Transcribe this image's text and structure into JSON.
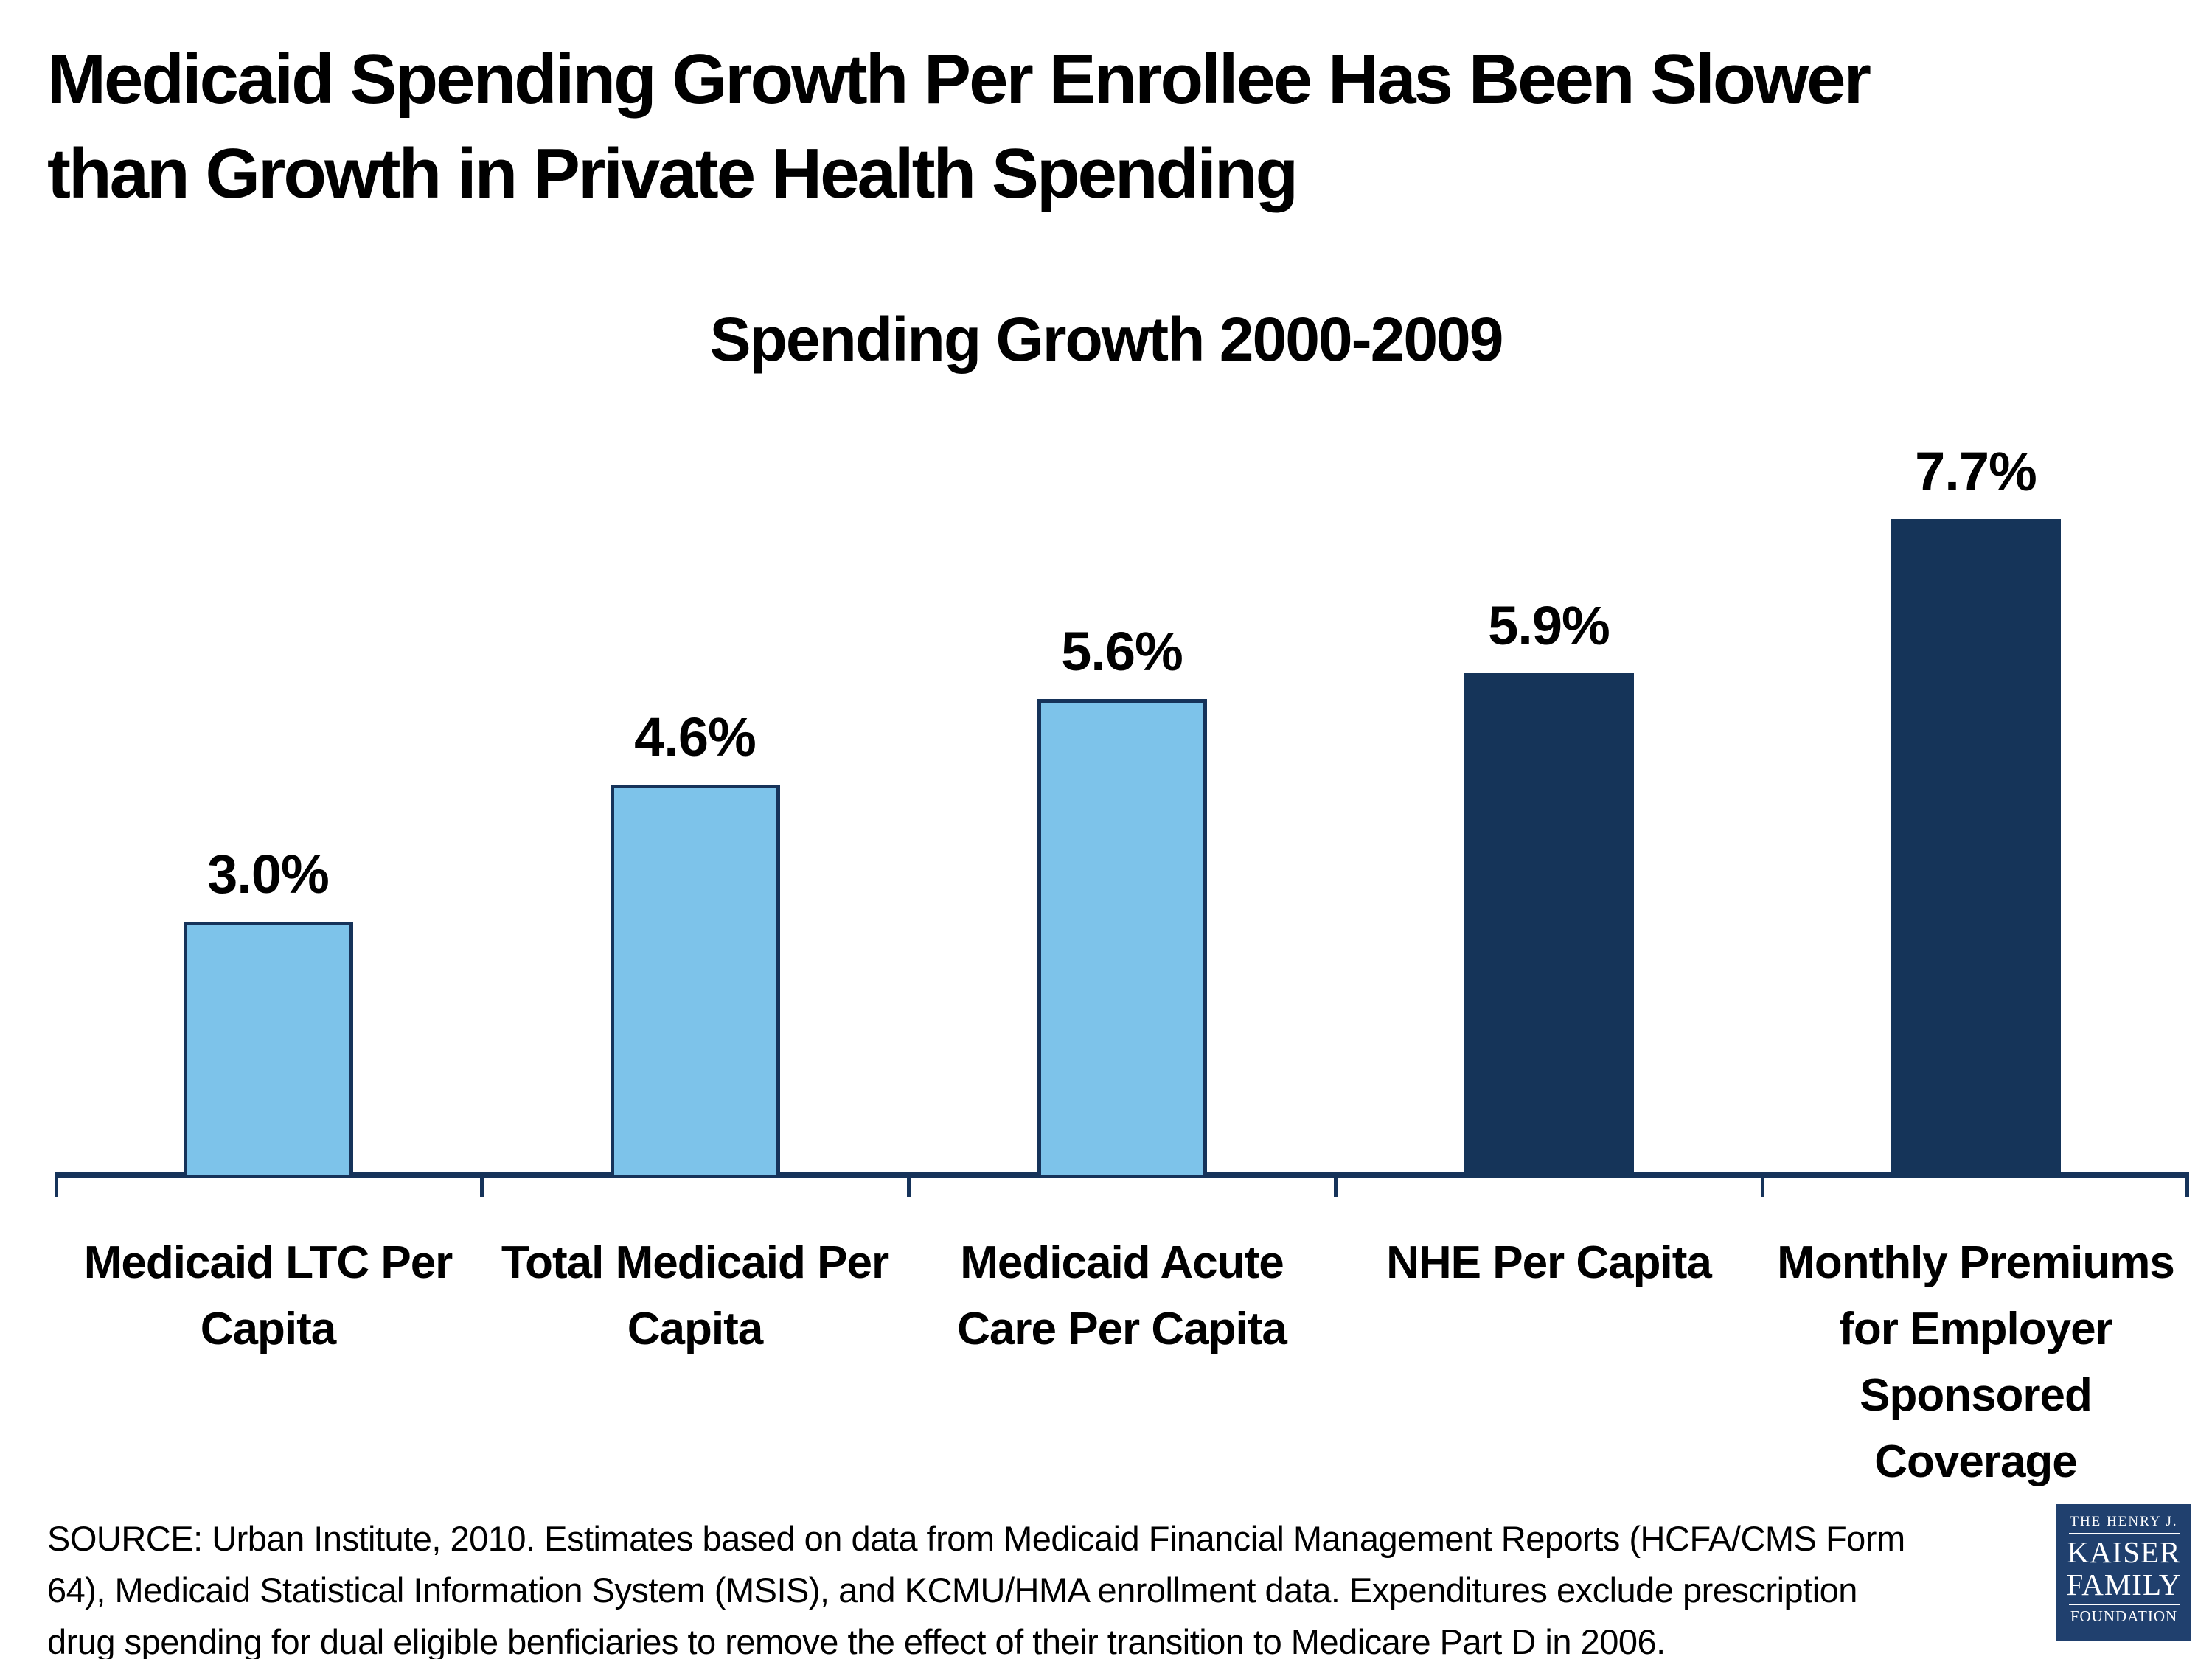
{
  "title": {
    "lines": [
      "Medicaid Spending Growth Per Enrollee Has Been Slower",
      "than Growth in Private Health Spending"
    ]
  },
  "chart_data": {
    "type": "bar",
    "title": "Spending Growth 2000-2009",
    "categories": [
      "Medicaid LTC Per Capita",
      "Total Medicaid Per Capita",
      "Medicaid Acute Care Per Capita",
      "NHE Per Capita",
      "Monthly Premiums for Employer Sponsored Coverage"
    ],
    "category_lines": [
      [
        "Medicaid LTC Per",
        "Capita"
      ],
      [
        "Total Medicaid Per",
        "Capita"
      ],
      [
        "Medicaid Acute",
        "Care Per Capita"
      ],
      [
        "NHE Per Capita"
      ],
      [
        "Monthly Premiums",
        "for Employer",
        "Sponsored",
        "Coverage"
      ]
    ],
    "values": [
      3.0,
      4.6,
      5.6,
      5.9,
      7.7
    ],
    "value_labels": [
      "3.0%",
      "4.6%",
      "5.6%",
      "5.9%",
      "7.7%"
    ],
    "unit": "percent",
    "ylim": [
      0,
      8.4
    ],
    "grid": false,
    "legend": false,
    "xlabel": "",
    "ylabel": "",
    "bar_colors": [
      "#7DC3EA",
      "#7DC3EA",
      "#7DC3EA",
      "#153459",
      "#153459"
    ],
    "bar_border_colors": [
      "#16335A",
      "#16335A",
      "#16335A",
      "",
      ""
    ],
    "axis_color": "#16335A"
  },
  "source": {
    "lines": [
      "SOURCE: Urban Institute, 2010. Estimates based on data from Medicaid Financial Management Reports (HCFA/CMS Form",
      "64), Medicaid Statistical Information System (MSIS), and KCMU/HMA enrollment data. Expenditures exclude prescription",
      "drug spending for dual eligible benficiaries to remove the effect of their transition to Medicare Part D in 2006."
    ]
  },
  "logo": {
    "line1": "THE HENRY J.",
    "line2": "KAISER",
    "line3": "FAMILY",
    "line4": "FOUNDATION",
    "background": "#20406E",
    "text_color": "#FFFFFF"
  },
  "colors": {
    "light_blue": "#7DC3EA",
    "dark_navy": "#153459",
    "axis_navy": "#16335A",
    "background": "#FFFFFF"
  }
}
